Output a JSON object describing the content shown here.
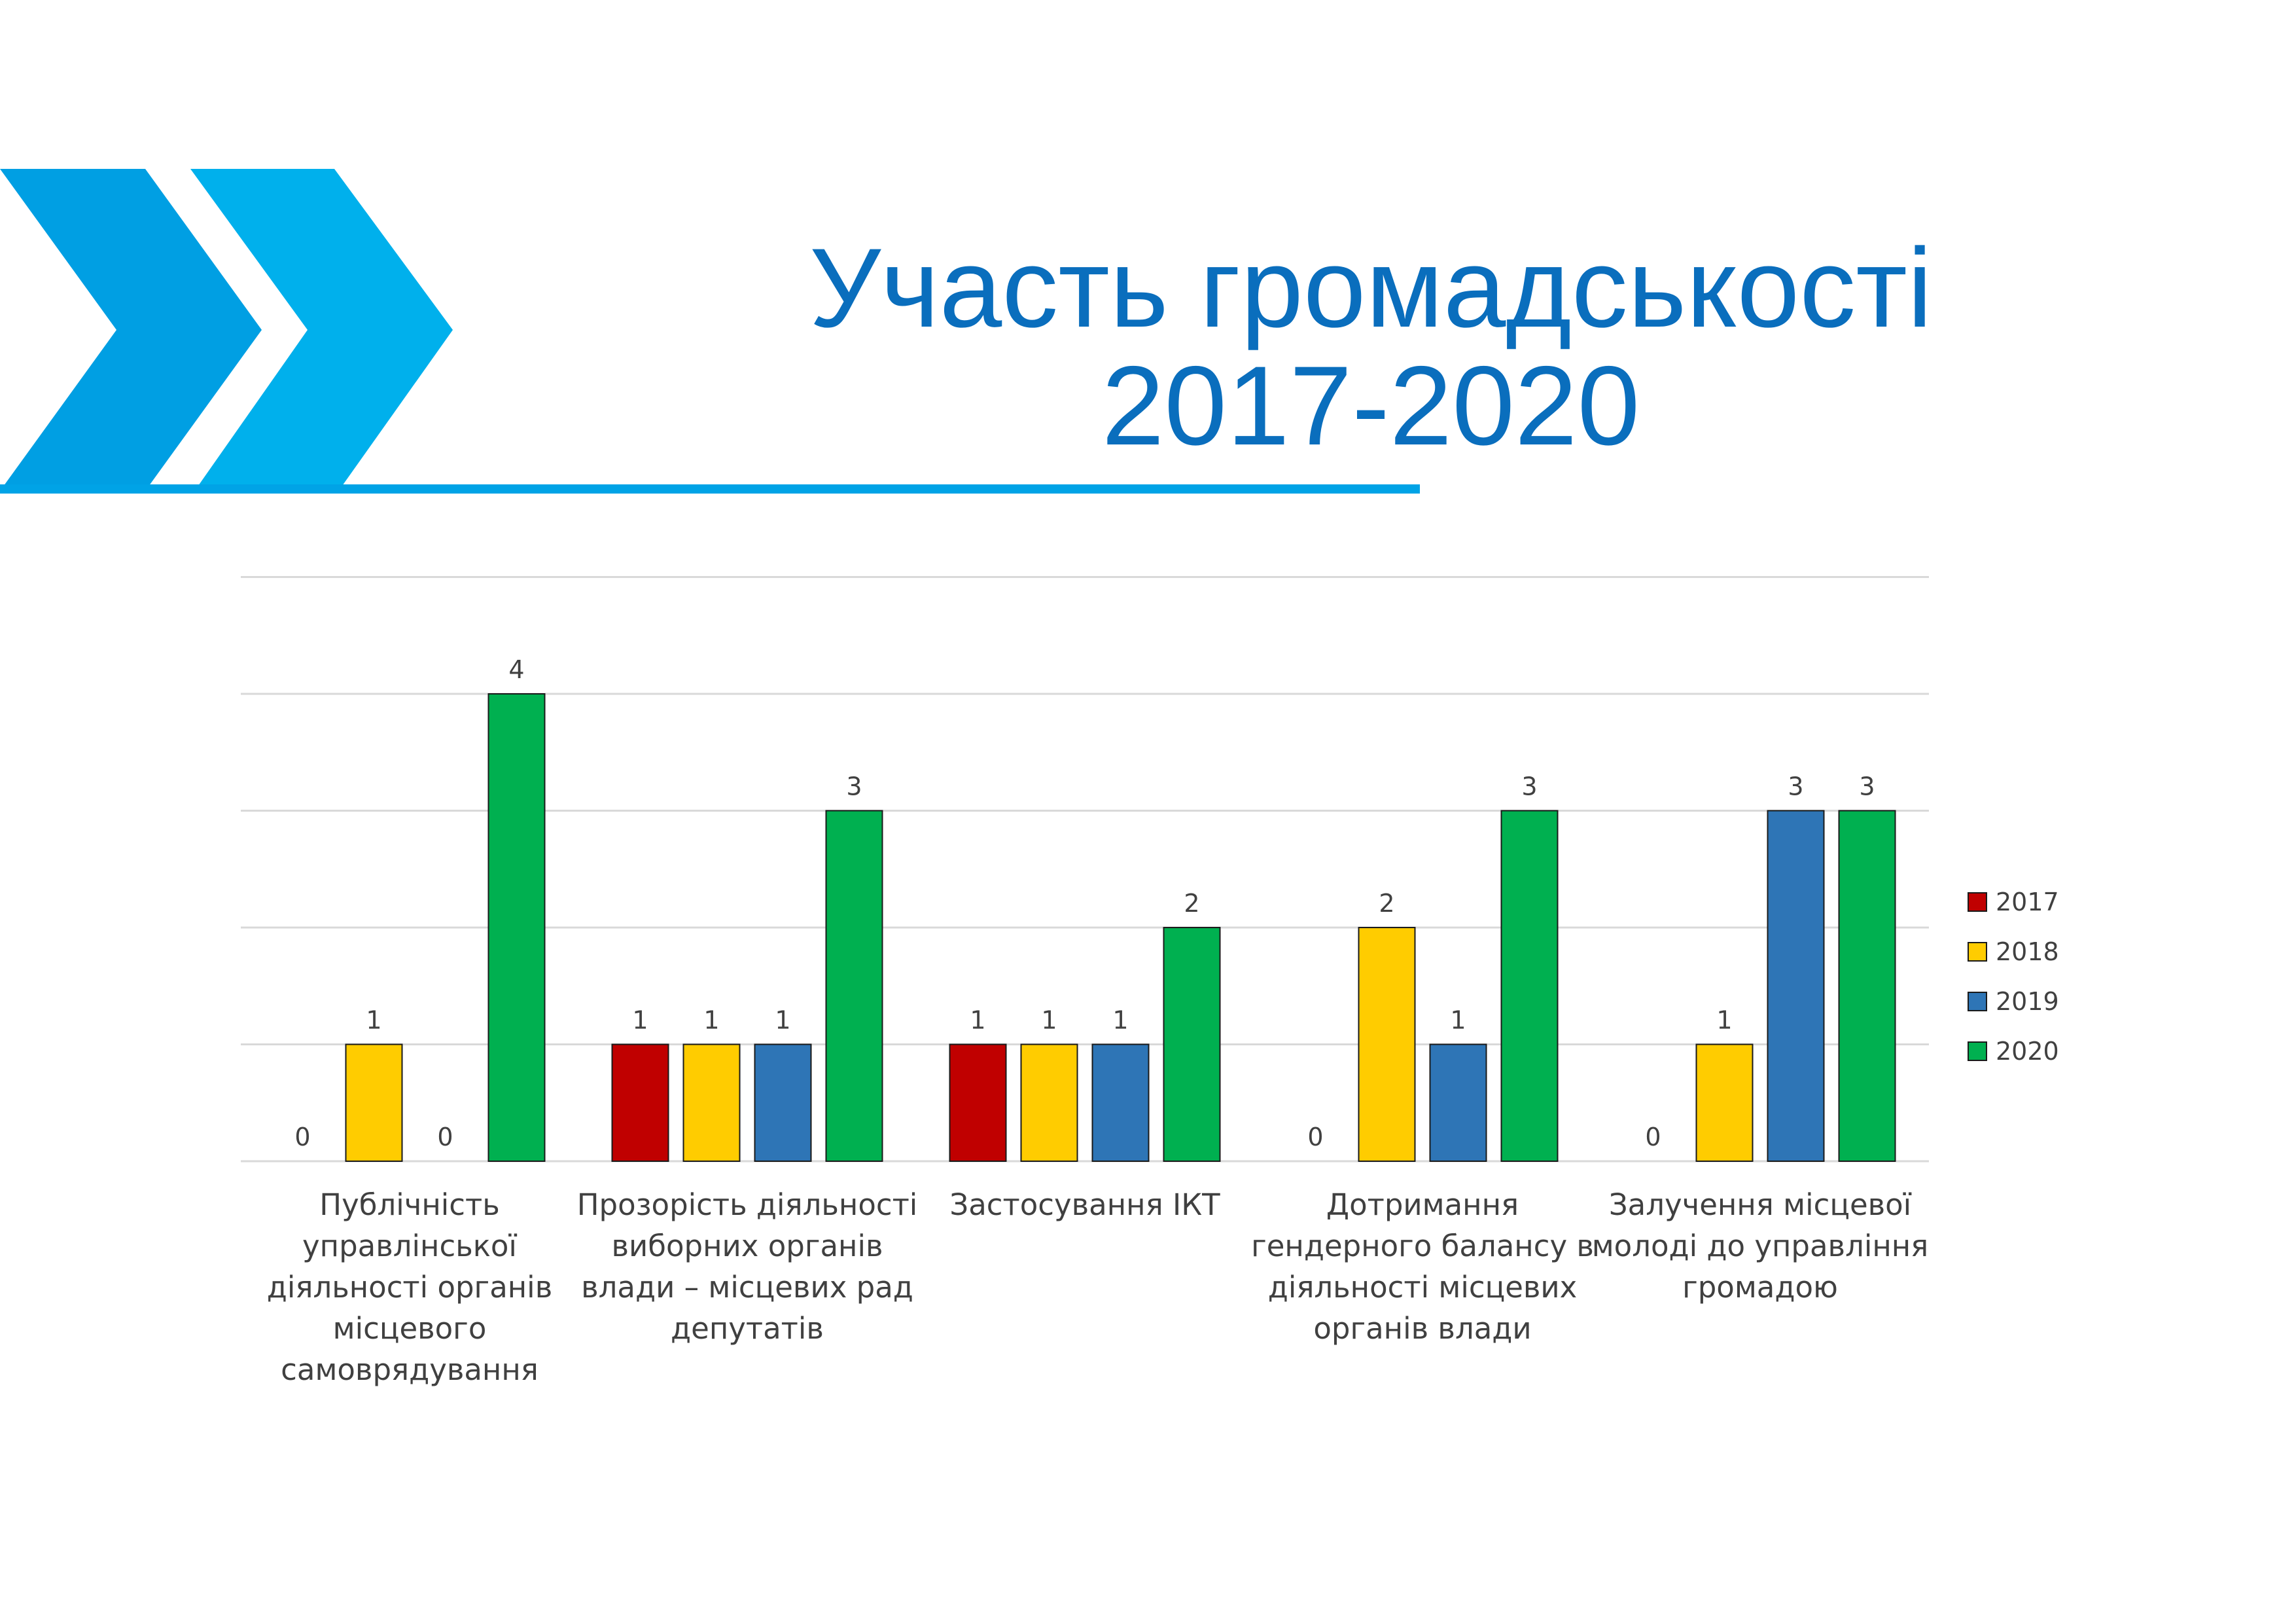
{
  "title": {
    "line1": "Участь громадськості",
    "line2": "2017-2020"
  },
  "colors": {
    "brand_dark": "#009fe3",
    "brand_light": "#00b0ec",
    "title_text": "#0a6ebd",
    "gridline": "#d9d9d9"
  },
  "chart_data": {
    "type": "bar",
    "title": "",
    "xlabel": "",
    "ylabel": "",
    "ylim": [
      0,
      5
    ],
    "grid": true,
    "legend_position": "right",
    "categories": [
      "Публічність управлінської діяльності органів місцевого самоврядування",
      "Прозорість діяльності виборних органів влади – місцевих рад депутатів",
      "Застосування ІКТ",
      "Дотримання гендерного балансу в діяльності місцевих органів влади",
      "Залучення місцевої молоді до управління громадою"
    ],
    "category_lines": [
      [
        "Публічність",
        "управлінської",
        "діяльності органів",
        "місцевого",
        "самоврядування"
      ],
      [
        "Прозорість діяльності",
        "виборних органів",
        "влади – місцевих рад",
        "депутатів"
      ],
      [
        "Застосування ІКТ"
      ],
      [
        "Дотримання",
        "гендерного балансу в",
        "діяльності місцевих",
        "органів влади"
      ],
      [
        "Залучення місцевої",
        "молоді до управління",
        "громадою"
      ]
    ],
    "series": [
      {
        "name": "2017",
        "color": "#c00000",
        "values": [
          0,
          1,
          1,
          0,
          0
        ]
      },
      {
        "name": "2018",
        "color": "#ffcc00",
        "values": [
          1,
          1,
          1,
          2,
          1
        ]
      },
      {
        "name": "2019",
        "color": "#2e75b6",
        "values": [
          0,
          1,
          1,
          1,
          3
        ]
      },
      {
        "name": "2020",
        "color": "#00b050",
        "values": [
          4,
          3,
          2,
          3,
          3
        ]
      }
    ],
    "data_labels": [
      [
        "0",
        "1",
        "1",
        "0",
        "0"
      ],
      [
        "1",
        "1",
        "1",
        "2",
        "1"
      ],
      [
        "0",
        "1",
        "1",
        "1",
        "3"
      ],
      [
        "4",
        "3",
        "2",
        "3",
        "3"
      ]
    ]
  }
}
